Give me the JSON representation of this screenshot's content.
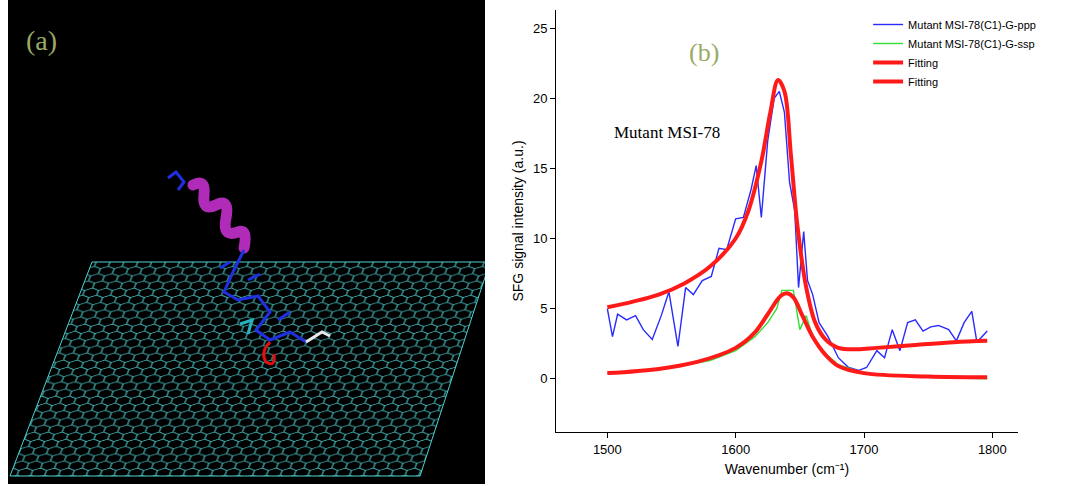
{
  "panel_a": {
    "label": "(a)"
  },
  "chart_data": {
    "type": "line",
    "panel_label": "(b)",
    "annotations": [
      "Mutant MSI-78"
    ],
    "x_label": "Wavenumber (cm⁻¹)",
    "y_label": "SFG signal intensity (a.u.)",
    "xlim": [
      1460,
      1820
    ],
    "xticks": [
      1500,
      1600,
      1700,
      1800
    ],
    "ylim": [
      -3.8,
      26.3
    ],
    "yticks": [
      0,
      5,
      10,
      15,
      20,
      25
    ],
    "grid": false,
    "legend": "top-right",
    "series": [
      {
        "name": "Mutant MSI-78(C1)-G-ppp",
        "color": "#2a2aff",
        "line_style": "solid",
        "x": [
          1500,
          1504,
          1508,
          1515,
          1522,
          1528,
          1535,
          1542,
          1548,
          1555,
          1561,
          1567,
          1574,
          1581,
          1587,
          1593,
          1600,
          1606,
          1612,
          1616,
          1620,
          1625,
          1630,
          1634,
          1638,
          1642,
          1646,
          1649,
          1653,
          1656,
          1660,
          1665,
          1672,
          1680,
          1688,
          1696,
          1702,
          1710,
          1716,
          1722,
          1728,
          1734,
          1740,
          1746,
          1752,
          1758,
          1766,
          1772,
          1778,
          1784,
          1788,
          1796
        ],
        "values": [
          5,
          3,
          4.6,
          4.2,
          4.5,
          3.5,
          2.8,
          4.5,
          6.2,
          2.3,
          6.5,
          6,
          7,
          7.3,
          9.3,
          9.2,
          11.4,
          11.5,
          13.5,
          15.2,
          11.5,
          17,
          20,
          20.5,
          19,
          14,
          12,
          6.5,
          10.5,
          7,
          6,
          4,
          3,
          1.5,
          0.8,
          0.6,
          0.8,
          2,
          1.5,
          3.5,
          2,
          4,
          4.2,
          3.4,
          3.7,
          3.8,
          3.5,
          2.7,
          4,
          4.8,
          2.6,
          3.4
        ]
      },
      {
        "name": "Mutant MSI-78(C1)-G-ssp",
        "color": "#33dd33",
        "line_style": "solid",
        "x": [
          1500,
          1520,
          1550,
          1580,
          1600,
          1615,
          1625,
          1632,
          1636,
          1645,
          1650,
          1655,
          1660,
          1670,
          1680,
          1700,
          1750,
          1796
        ],
        "values": [
          0.4,
          0.5,
          0.8,
          1.3,
          2,
          3,
          4,
          5,
          6.3,
          6.3,
          3.5,
          4.5,
          3,
          1.8,
          1,
          0.4,
          0.1,
          0
        ]
      },
      {
        "name": "Fitting",
        "color": "#ff1a1a",
        "line_style": "bold",
        "x": [
          1500,
          1520,
          1540,
          1560,
          1580,
          1600,
          1610,
          1620,
          1627,
          1633,
          1638,
          1643,
          1648,
          1655,
          1662,
          1670,
          1680,
          1695,
          1710,
          1740,
          1770,
          1796
        ],
        "values": [
          5.1,
          5.5,
          6.0,
          6.8,
          8,
          10,
          12,
          15.5,
          19,
          21.3,
          20.5,
          16,
          11,
          6.5,
          4,
          2.8,
          2.2,
          2.1,
          2.2,
          2.4,
          2.6,
          2.7
        ]
      },
      {
        "name": "Fitting",
        "color": "#ff1a1a",
        "line_style": "bold",
        "x": [
          1500,
          1540,
          1570,
          1600,
          1615,
          1625,
          1635,
          1640,
          1645,
          1652,
          1660,
          1670,
          1680,
          1700,
          1750,
          1796
        ],
        "values": [
          0.4,
          0.7,
          1.2,
          2.2,
          3.3,
          4.6,
          5.9,
          6.1,
          5.8,
          4.5,
          3,
          1.7,
          0.9,
          0.4,
          0.15,
          0.1
        ]
      }
    ]
  }
}
